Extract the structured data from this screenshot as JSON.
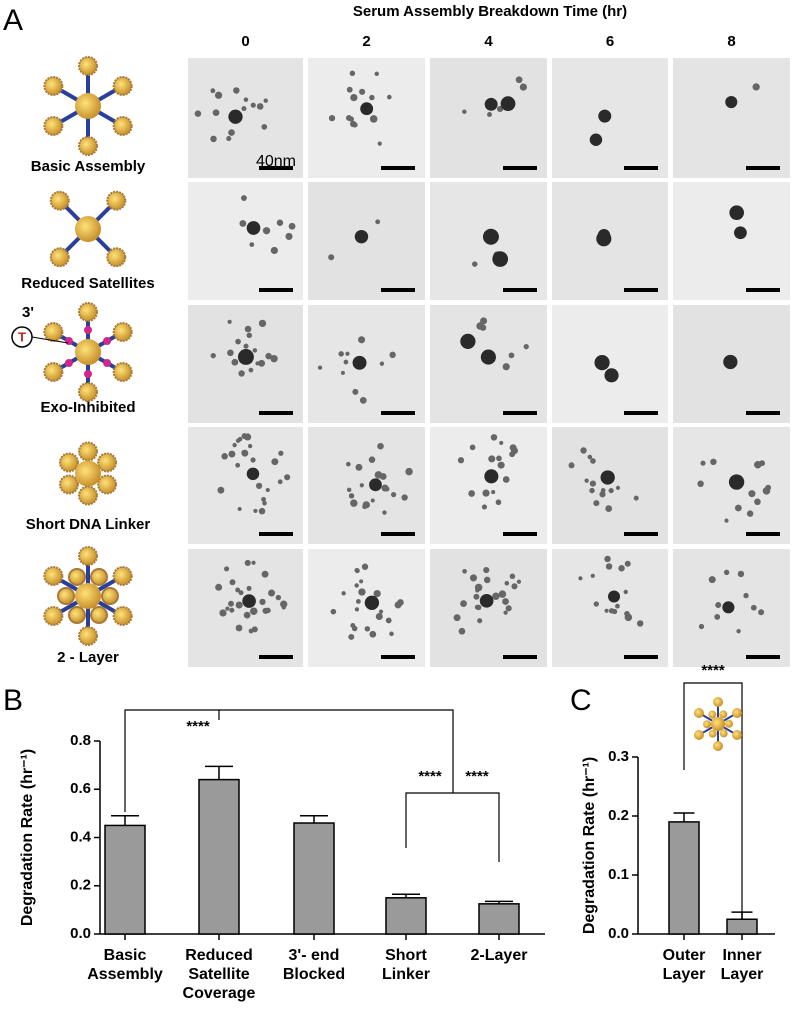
{
  "panel_labels": [
    "A",
    "B",
    "C"
  ],
  "panel_a": {
    "title": "Serum Assembly Breakdown Time (hr)",
    "times": [
      "0",
      "2",
      "4",
      "6",
      "8"
    ],
    "rows": [
      "Basic Assembly",
      "Reduced Satellites",
      "Exo-Inhibited",
      "Short DNA Linker",
      "2 - Layer"
    ],
    "scale_label": "40nm",
    "exo_marks": [
      "3'",
      "T"
    ]
  },
  "chart_data": [
    {
      "type": "bar",
      "ylabel": "Degradation Rate (hr⁻¹)",
      "categories": [
        [
          "Basic",
          "Assembly"
        ],
        [
          "Reduced",
          "Satellite",
          "Coverage"
        ],
        [
          "3'- end",
          "Blocked"
        ],
        [
          "Short",
          "Linker"
        ],
        [
          "2-Layer"
        ]
      ],
      "values": [
        0.45,
        0.64,
        0.46,
        0.15,
        0.125
      ],
      "errors": [
        0.04,
        0.055,
        0.03,
        0.015,
        0.01
      ],
      "color": "#9a9a9a",
      "ylim": [
        0,
        0.8
      ],
      "yticks": [
        {
          "value": 0,
          "label": "0.0"
        },
        0.2,
        0.4,
        0.6,
        0.8
      ],
      "annotations": [
        "****",
        "****",
        "****"
      ]
    },
    {
      "type": "bar",
      "ylabel": "Degradation Rate (hr⁻¹)",
      "categories": [
        [
          "Outer",
          "Layer"
        ],
        [
          "Inner",
          "Layer"
        ]
      ],
      "values": [
        0.19,
        0.025
      ],
      "errors": [
        0.015,
        0.012
      ],
      "color": "#9a9a9a",
      "ylim": [
        0,
        0.3
      ],
      "yticks": [
        {
          "value": 0,
          "label": "0.0"
        },
        0.1,
        0.2,
        0.3
      ],
      "annotations": [
        "****"
      ]
    }
  ]
}
